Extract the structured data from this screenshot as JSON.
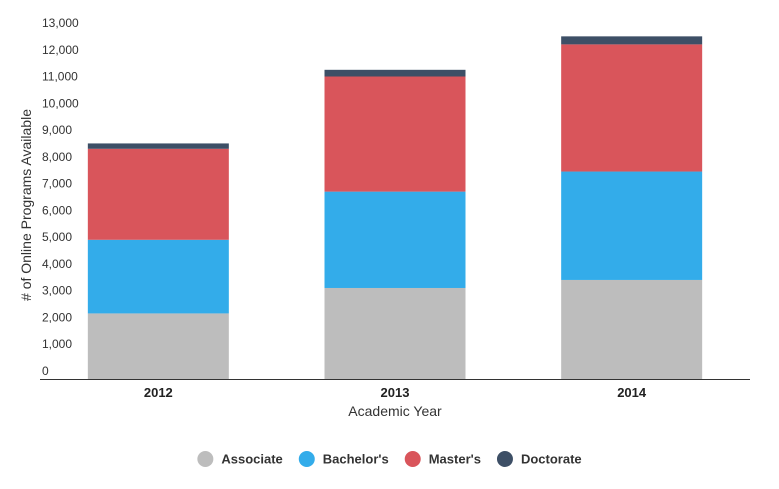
{
  "chart_data": {
    "type": "bar",
    "stacked": true,
    "categories": [
      "2012",
      "2013",
      "2014"
    ],
    "series": [
      {
        "name": "Associate",
        "color": "#bdbdbd",
        "values": [
          2450,
          3400,
          3700
        ]
      },
      {
        "name": "Bachelor's",
        "color": "#33acea",
        "values": [
          2750,
          3600,
          4050
        ]
      },
      {
        "name": "Master's",
        "color": "#d9555b",
        "values": [
          3400,
          4300,
          4750
        ]
      },
      {
        "name": "Doctorate",
        "color": "#3d4f66",
        "values": [
          200,
          250,
          300
        ]
      }
    ],
    "ylim": [
      0,
      13000
    ],
    "yticks": [
      "0",
      "1,000",
      "2,000",
      "3,000",
      "4,000",
      "5,000",
      "6,000",
      "7,000",
      "8,000",
      "9,000",
      "10,000",
      "11,000",
      "12,000",
      "13,000"
    ],
    "xlabel": "Academic Year",
    "ylabel": "# of Online Programs Available",
    "grid": false,
    "legend_position": "bottom"
  }
}
